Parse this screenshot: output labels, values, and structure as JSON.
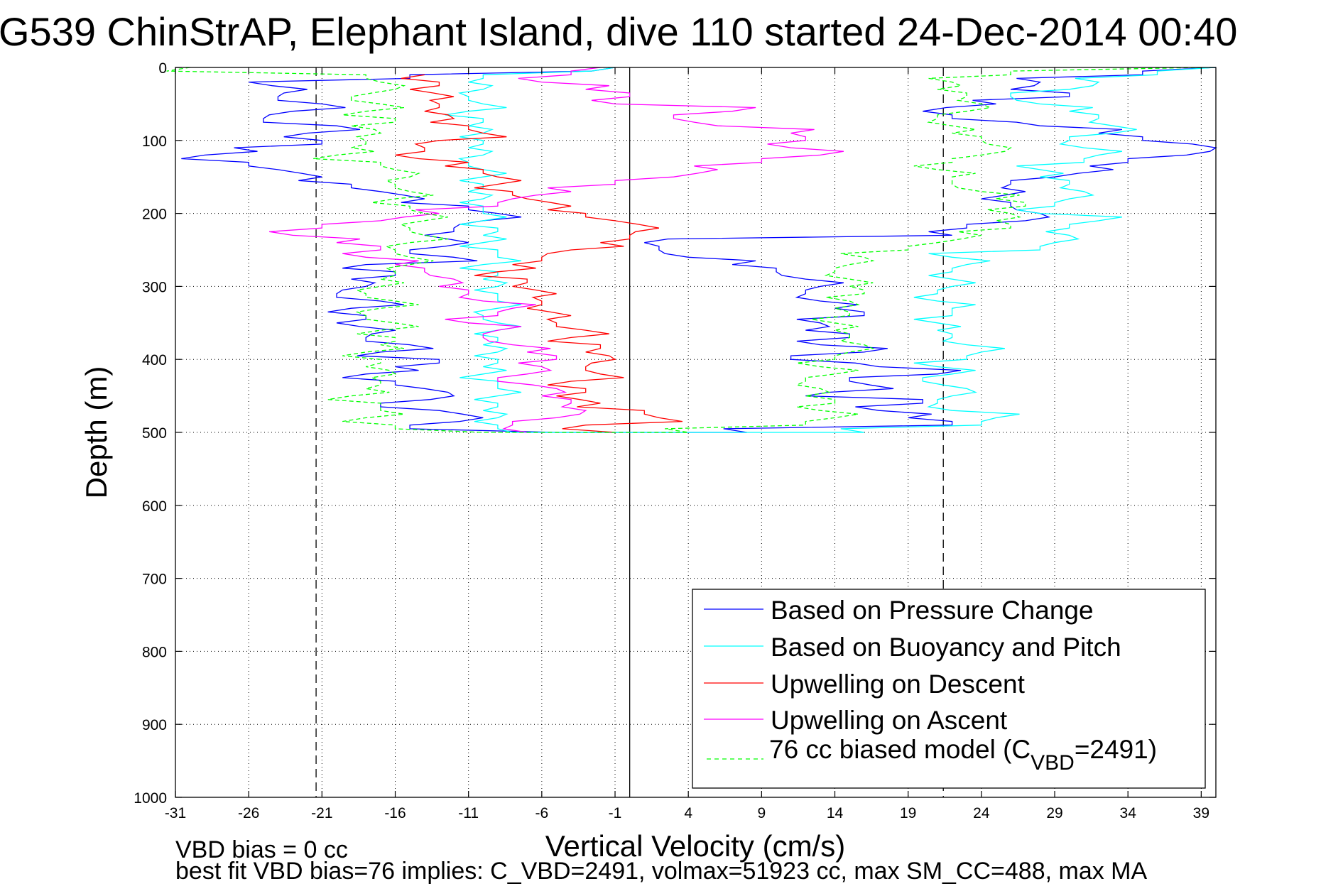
{
  "chart_data": {
    "type": "line",
    "title": "G539 ChinStrAP, Elephant Island, dive 110 started 24-Dec-2014 00:40",
    "xlabel": "Vertical Velocity (cm/s)",
    "ylabel": "Depth (m)",
    "xlim": [
      -31,
      40
    ],
    "ylim": [
      0,
      1000
    ],
    "y_reversed": true,
    "grid": true,
    "xticks": [
      -31,
      -26,
      -21,
      -16,
      -11,
      -6,
      -1,
      4,
      9,
      14,
      19,
      24,
      29,
      34,
      39
    ],
    "yticks": [
      0,
      100,
      200,
      300,
      400,
      500,
      600,
      700,
      800,
      900,
      1000
    ],
    "reference_lines": [
      {
        "x": 0,
        "style": "solid"
      },
      {
        "x": -21.4,
        "style": "dashed"
      },
      {
        "x": 21.4,
        "style": "dashed"
      }
    ],
    "legend_position": "bottom-right",
    "series": [
      {
        "name": "Based on Pressure Change",
        "color": "#0000ff",
        "style": "solid",
        "depth": [
          0,
          10,
          20,
          30,
          40,
          50,
          60,
          70,
          80,
          90,
          100,
          110,
          120,
          130,
          140,
          150,
          160,
          170,
          180,
          190,
          200,
          210,
          220,
          230,
          240,
          250,
          260,
          270,
          280,
          290,
          300,
          310,
          320,
          330,
          340,
          350,
          360,
          370,
          380,
          390,
          400,
          410,
          420,
          430,
          440,
          450,
          460,
          470,
          480,
          490,
          500,
          500,
          490,
          480,
          470,
          460,
          450,
          440,
          430,
          420,
          410,
          400,
          390,
          380,
          370,
          360,
          350,
          340,
          330,
          320,
          310,
          300,
          290,
          280,
          270,
          260,
          250,
          240,
          230,
          220,
          210,
          200,
          190,
          180,
          170,
          160,
          150,
          140,
          130,
          120,
          110,
          100,
          90,
          80,
          70,
          60,
          50,
          40,
          30,
          20,
          10,
          0
        ],
        "values": [
          -1,
          -15,
          -26,
          -22,
          -24,
          -21,
          -23,
          -25,
          -20,
          -22,
          -21,
          -27,
          -29,
          -26,
          -24,
          -21,
          -19,
          -17,
          -14,
          -11,
          -9,
          -10,
          -12,
          -14,
          -11,
          -15,
          -12,
          -18,
          -16,
          -19,
          -18,
          -20,
          -17,
          -19,
          -18,
          -20,
          -16,
          -18,
          -15,
          -17,
          -13,
          -16,
          -18,
          -16,
          -14,
          -12,
          -17,
          -13,
          -10,
          -15,
          -5,
          8,
          22,
          19,
          17,
          20,
          12,
          18,
          15,
          21,
          17,
          11,
          16,
          13,
          15,
          12,
          13,
          16,
          14,
          13,
          12,
          13,
          12,
          10,
          7,
          4,
          2,
          1,
          22,
          23,
          27,
          28,
          26,
          24,
          27,
          26,
          29,
          33,
          34,
          38,
          40,
          35,
          32,
          28,
          22,
          20,
          25,
          30,
          26,
          28,
          35,
          40
        ]
      },
      {
        "name": "Based on Buoyancy and Pitch",
        "color": "#00ffff",
        "style": "solid",
        "depth": [
          0,
          10,
          20,
          30,
          40,
          50,
          60,
          70,
          80,
          90,
          100,
          110,
          120,
          130,
          140,
          150,
          160,
          170,
          180,
          190,
          200,
          210,
          220,
          230,
          240,
          250,
          260,
          270,
          280,
          290,
          300,
          310,
          320,
          330,
          340,
          350,
          360,
          370,
          380,
          390,
          400,
          410,
          420,
          430,
          440,
          450,
          460,
          470,
          480,
          490,
          500,
          500,
          490,
          480,
          470,
          460,
          450,
          440,
          430,
          420,
          410,
          400,
          390,
          380,
          370,
          360,
          350,
          340,
          330,
          320,
          310,
          300,
          290,
          280,
          270,
          260,
          250,
          240,
          230,
          220,
          210,
          200,
          190,
          180,
          170,
          160,
          150,
          140,
          130,
          120,
          110,
          100,
          90,
          80,
          70,
          60,
          50,
          40,
          30,
          20,
          10,
          0
        ],
        "values": [
          -1,
          -10,
          -11,
          -10,
          -11,
          -10,
          -11,
          -10,
          -11,
          -10,
          -10,
          -11,
          -10,
          -11,
          -10,
          -10,
          -10,
          -11,
          -10,
          -10,
          -10,
          -10,
          -9,
          -10,
          -10,
          -9,
          -9,
          -10,
          -9,
          -10,
          -9,
          -9,
          -9,
          -9,
          -10,
          -9,
          -9,
          -9,
          -10,
          -9,
          -9,
          -10,
          -10,
          -9,
          -9,
          -9,
          -9,
          -10,
          -9,
          -9,
          -8,
          16,
          24,
          25,
          22,
          21,
          22,
          23,
          20,
          22,
          21,
          23,
          24,
          23,
          22,
          21,
          21,
          22,
          22,
          21,
          21,
          22,
          22,
          22,
          23,
          22,
          28,
          29,
          30,
          30,
          32,
          28,
          29,
          30,
          31,
          30,
          28,
          28,
          31,
          32,
          31,
          30,
          33,
          33,
          32,
          30,
          28,
          26,
          30,
          32,
          36,
          40
        ]
      },
      {
        "name": "Upwelling on Descent",
        "color": "#ff0000",
        "style": "solid",
        "depth": [
          10,
          20,
          30,
          40,
          50,
          60,
          70,
          80,
          90,
          100,
          110,
          120,
          130,
          140,
          150,
          160,
          170,
          180,
          190,
          200,
          210,
          220,
          230,
          240,
          250,
          260,
          270,
          280,
          290,
          300,
          310,
          320,
          330,
          340,
          350,
          360,
          370,
          380,
          390,
          400,
          410,
          420,
          430,
          440,
          450,
          460,
          470,
          480,
          490,
          500
        ],
        "values": [
          -14,
          -13,
          -15,
          -12,
          -13,
          -14,
          -12,
          -11,
          -10,
          -13,
          -14,
          -16,
          -11,
          -10,
          -9,
          -9,
          -8,
          -7,
          -4,
          -3,
          -1,
          2,
          0,
          -2,
          -4,
          -6,
          -8,
          -9,
          -7,
          -8,
          -5,
          -6,
          -7,
          -4,
          -5,
          -3,
          -4,
          -2,
          -3,
          -1,
          -3,
          -2,
          -4,
          -3,
          -5,
          -2,
          1,
          2,
          -3,
          -1
        ]
      },
      {
        "name": "Upwelling on Ascent",
        "color": "#ff00ff",
        "style": "solid",
        "depth": [
          500,
          490,
          480,
          470,
          460,
          450,
          440,
          430,
          420,
          410,
          400,
          390,
          380,
          370,
          360,
          350,
          340,
          330,
          320,
          310,
          300,
          290,
          280,
          270,
          260,
          250,
          240,
          230,
          220,
          210,
          200,
          190,
          180,
          170,
          160,
          150,
          140,
          130,
          120,
          110,
          100,
          90,
          80,
          70,
          60,
          50,
          40,
          30,
          20,
          10,
          0
        ],
        "values": [
          -7,
          -8,
          -5,
          -3,
          -4,
          -6,
          -5,
          -9,
          -7,
          -6,
          -5,
          -7,
          -8,
          -10,
          -9,
          -11,
          -9,
          -8,
          -10,
          -11,
          -13,
          -12,
          -14,
          -16,
          -18,
          -17,
          -20,
          -23,
          -21,
          -17,
          -13,
          -9,
          -8,
          -4,
          -1,
          3,
          6,
          9,
          13,
          11,
          12,
          11,
          6,
          3,
          7,
          -1,
          0,
          -3,
          -6,
          -4,
          -2
        ]
      },
      {
        "name": "76 cc biased model (C_VBD=2491)",
        "color": "#00ff00",
        "style": "dashed",
        "depth": [
          0,
          10,
          20,
          30,
          40,
          50,
          60,
          70,
          80,
          90,
          100,
          110,
          120,
          130,
          140,
          150,
          160,
          170,
          180,
          190,
          200,
          210,
          220,
          230,
          240,
          250,
          260,
          270,
          280,
          290,
          300,
          310,
          320,
          330,
          340,
          350,
          360,
          370,
          380,
          390,
          400,
          410,
          420,
          430,
          440,
          450,
          460,
          470,
          480,
          490,
          500,
          500,
          490,
          480,
          470,
          460,
          450,
          440,
          430,
          420,
          410,
          400,
          390,
          380,
          370,
          360,
          350,
          340,
          330,
          320,
          310,
          300,
          290,
          280,
          270,
          260,
          250,
          240,
          230,
          220,
          210,
          200,
          190,
          180,
          170,
          160,
          150,
          140,
          130,
          120,
          110,
          100,
          90,
          80,
          70,
          60,
          50,
          40,
          30,
          20,
          10,
          0
        ],
        "values": [
          -30,
          -18,
          -17,
          -16,
          -19,
          -17,
          -18,
          -16,
          -19,
          -17,
          -18,
          -19,
          -20,
          -17,
          -16,
          -15,
          -16,
          -15,
          -16,
          -15,
          -14,
          -14,
          -15,
          -14,
          -15,
          -16,
          -15,
          -15,
          -16,
          -17,
          -17,
          -18,
          -16,
          -17,
          -18,
          -16,
          -17,
          -16,
          -17,
          -18,
          -17,
          -18,
          -16,
          -17,
          -18,
          -19,
          -17,
          -17,
          -18,
          -16,
          -10,
          4,
          12,
          14,
          13,
          14,
          12,
          13,
          12,
          14,
          13,
          14,
          15,
          16,
          15,
          14,
          14,
          15,
          14,
          15,
          16,
          15,
          15,
          14,
          15,
          16,
          19,
          21,
          24,
          26,
          25,
          26,
          27,
          25,
          24,
          22,
          22,
          21,
          22,
          24,
          26,
          24,
          22,
          22,
          21,
          23,
          24,
          23,
          21,
          22,
          26,
          39
        ]
      }
    ],
    "legend": [
      {
        "label": "Based on Pressure Change",
        "color": "#0000ff",
        "style": "solid"
      },
      {
        "label": "Based on Buoyancy and Pitch",
        "color": "#00ffff",
        "style": "solid"
      },
      {
        "label": "Upwelling on Descent",
        "color": "#ff0000",
        "style": "solid"
      },
      {
        "label": "Upwelling on Ascent",
        "color": "#ff00ff",
        "style": "solid"
      },
      {
        "label_main": "76 cc biased model (C",
        "label_sub": "VBD",
        "label_end": "=2491)",
        "color": "#00ff00",
        "style": "dashed"
      }
    ],
    "annotations": {
      "vbd_bias": "VBD bias = 0 cc",
      "best_fit": "best fit VBD bias=76 implies: C_VBD=2491, volmax=51923 cc, max SM_CC=488, max MA"
    }
  }
}
